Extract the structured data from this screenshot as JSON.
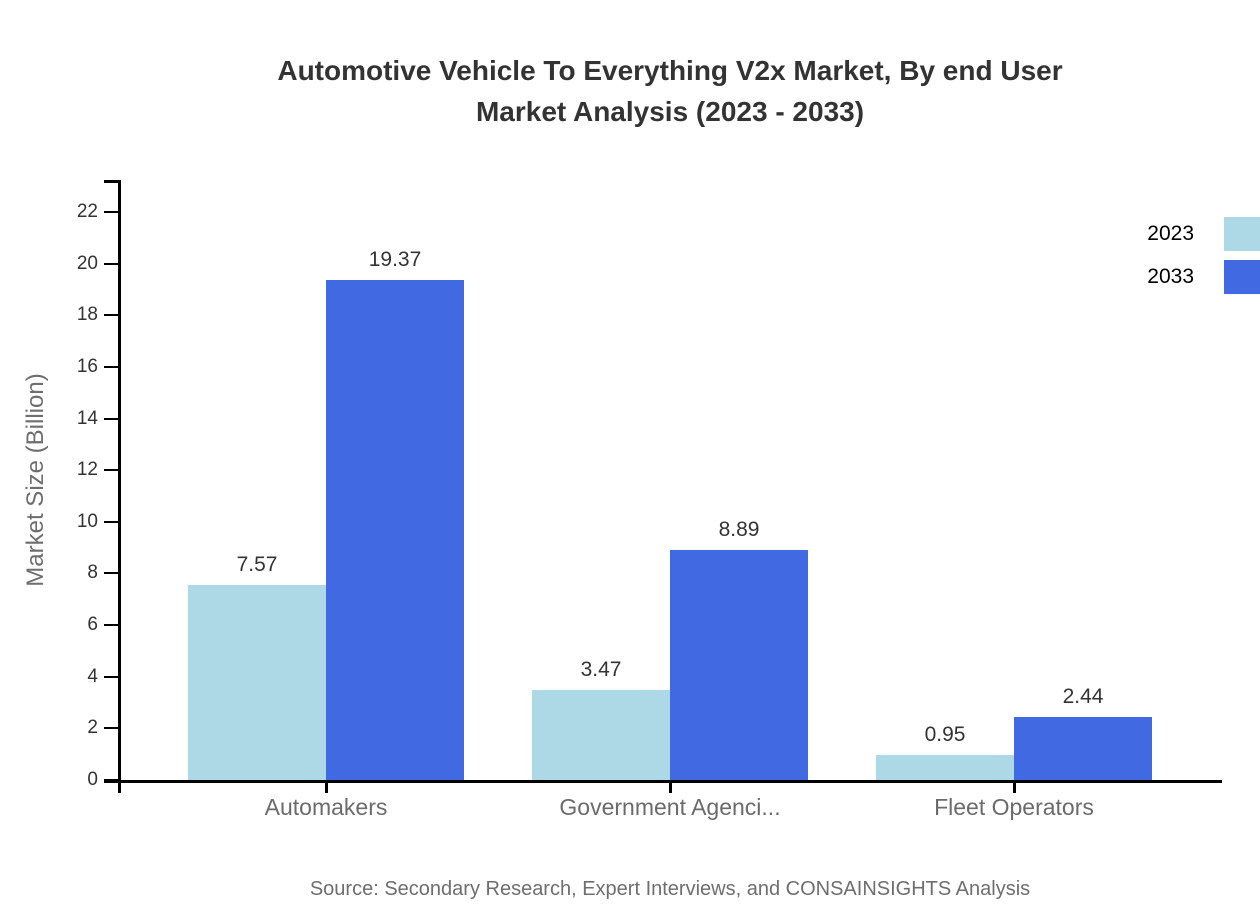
{
  "title": {
    "line1": "Automotive Vehicle To Everything V2x Market, By end User",
    "line2": "Market Analysis (2023 - 2033)"
  },
  "y_axis": {
    "label": "Market Size (Billion)"
  },
  "source": "Source: Secondary Research, Expert Interviews, and CONSAINSIGHTS Analysis",
  "legend": [
    {
      "label": "2023",
      "color": "#ADD8E6"
    },
    {
      "label": "2033",
      "color": "#4169E1"
    }
  ],
  "colors": {
    "axis": "#000000",
    "bar_2023": "#ADD8E6",
    "bar_2033": "#4169E1",
    "title_text": "#333333",
    "tick_text": "#333333",
    "category_text": "#6b6b6b",
    "muted_text": "#6e6e6e"
  },
  "chart_data": {
    "type": "bar",
    "title": "Automotive Vehicle To Everything V2x Market, By end User Market Analysis (2023 - 2033)",
    "categories": [
      "Automakers",
      "Government Agenci...",
      "Fleet Operators"
    ],
    "series": [
      {
        "name": "2023",
        "color": "#ADD8E6",
        "values": [
          7.57,
          3.47,
          0.95
        ],
        "labels": [
          "7.57",
          "3.47",
          "0.95"
        ]
      },
      {
        "name": "2033",
        "color": "#4169E1",
        "values": [
          19.37,
          8.89,
          2.44
        ],
        "labels": [
          "19.37",
          "8.89",
          "2.44"
        ]
      }
    ],
    "xlabel": "",
    "ylabel": "Market Size (Billion)",
    "ylim": [
      0,
      23.2
    ],
    "yticks": [
      0,
      2,
      4,
      6,
      8,
      10,
      12,
      14,
      16,
      18,
      20,
      22
    ],
    "grid": false,
    "legend_position": "top-right",
    "value_labels": true
  }
}
